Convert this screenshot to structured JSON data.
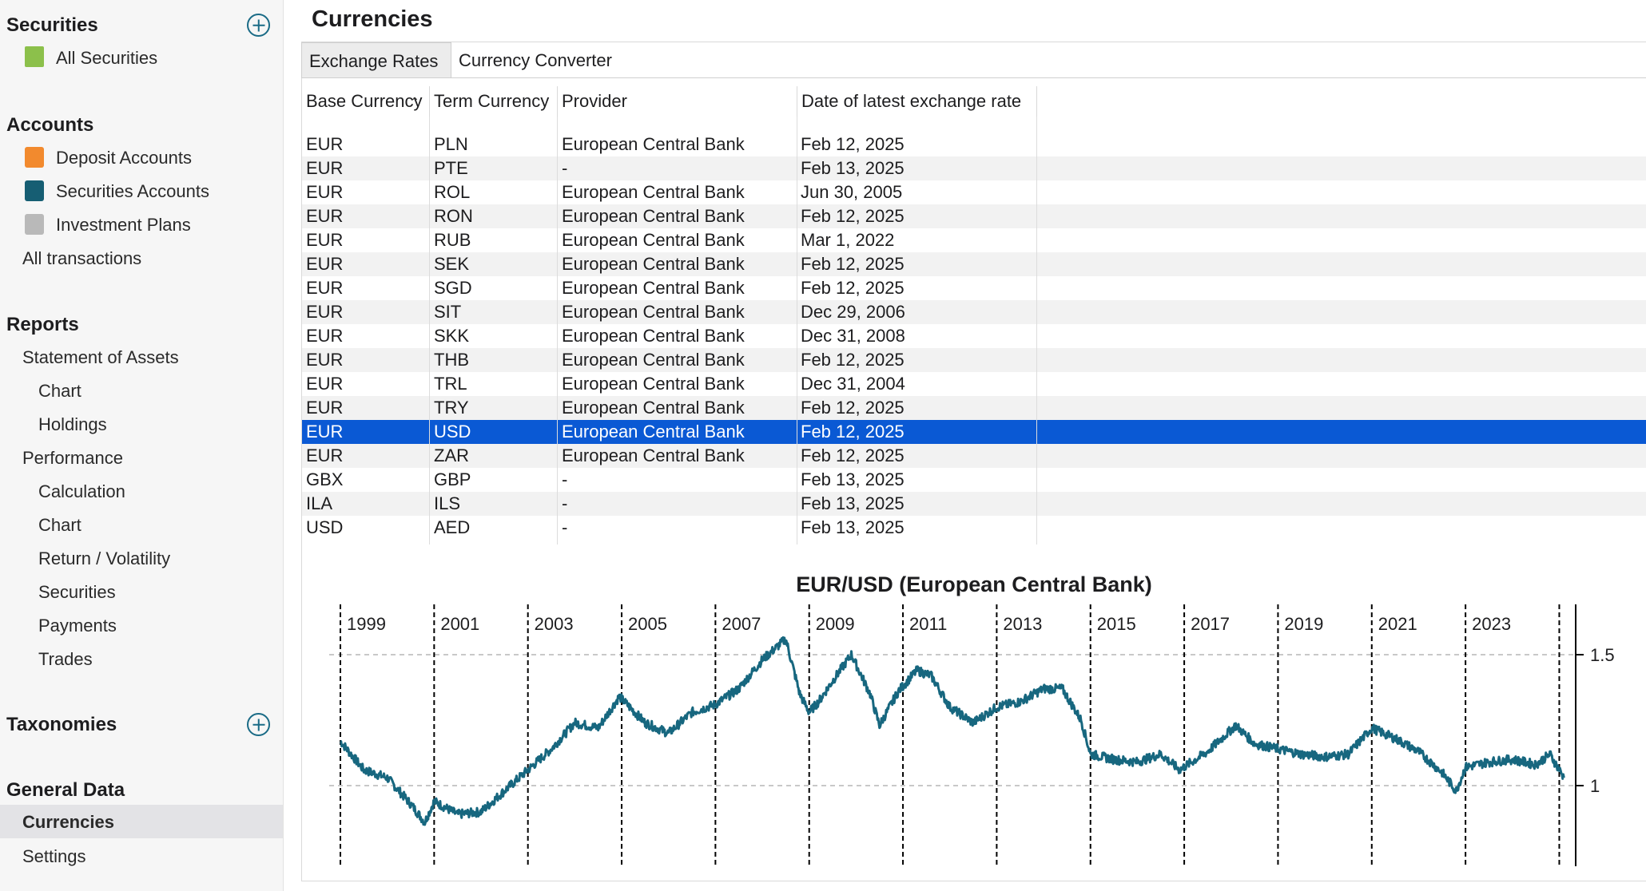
{
  "sidebar": {
    "securities": {
      "heading": "Securities",
      "items": [
        "All Securities"
      ]
    },
    "accounts": {
      "heading": "Accounts",
      "items": [
        "Deposit Accounts",
        "Securities Accounts",
        "Investment Plans",
        "All transactions"
      ]
    },
    "reports": {
      "heading": "Reports",
      "items": [
        "Statement of Assets",
        "Chart",
        "Holdings",
        "Performance",
        "Calculation",
        "Chart",
        "Return / Volatility",
        "Securities",
        "Payments",
        "Trades"
      ]
    },
    "taxonomies": {
      "heading": "Taxonomies"
    },
    "general": {
      "heading": "General Data",
      "items": [
        "Currencies",
        "Settings"
      ]
    }
  },
  "page": {
    "title": "Currencies"
  },
  "tabs": [
    "Exchange Rates",
    "Currency Converter"
  ],
  "table": {
    "columns": [
      "Base Currency",
      "Term Currency",
      "Provider",
      "Date of latest exchange rate"
    ],
    "rows": [
      {
        "base": "EUR",
        "term": "PLN",
        "provider": "European Central Bank",
        "date": "Feb 12, 2025"
      },
      {
        "base": "EUR",
        "term": "PTE",
        "provider": "-",
        "date": "Feb 13, 2025"
      },
      {
        "base": "EUR",
        "term": "ROL",
        "provider": "European Central Bank",
        "date": "Jun 30, 2005"
      },
      {
        "base": "EUR",
        "term": "RON",
        "provider": "European Central Bank",
        "date": "Feb 12, 2025"
      },
      {
        "base": "EUR",
        "term": "RUB",
        "provider": "European Central Bank",
        "date": "Mar 1, 2022"
      },
      {
        "base": "EUR",
        "term": "SEK",
        "provider": "European Central Bank",
        "date": "Feb 12, 2025"
      },
      {
        "base": "EUR",
        "term": "SGD",
        "provider": "European Central Bank",
        "date": "Feb 12, 2025"
      },
      {
        "base": "EUR",
        "term": "SIT",
        "provider": "European Central Bank",
        "date": "Dec 29, 2006"
      },
      {
        "base": "EUR",
        "term": "SKK",
        "provider": "European Central Bank",
        "date": "Dec 31, 2008"
      },
      {
        "base": "EUR",
        "term": "THB",
        "provider": "European Central Bank",
        "date": "Feb 12, 2025"
      },
      {
        "base": "EUR",
        "term": "TRL",
        "provider": "European Central Bank",
        "date": "Dec 31, 2004"
      },
      {
        "base": "EUR",
        "term": "TRY",
        "provider": "European Central Bank",
        "date": "Feb 12, 2025"
      },
      {
        "base": "EUR",
        "term": "USD",
        "provider": "European Central Bank",
        "date": "Feb 12, 2025",
        "selected": true
      },
      {
        "base": "EUR",
        "term": "ZAR",
        "provider": "European Central Bank",
        "date": "Feb 12, 2025"
      },
      {
        "base": "GBX",
        "term": "GBP",
        "provider": "-",
        "date": "Feb 13, 2025"
      },
      {
        "base": "ILA",
        "term": "ILS",
        "provider": "-",
        "date": "Feb 13, 2025"
      },
      {
        "base": "USD",
        "term": "AED",
        "provider": "-",
        "date": "Feb 13, 2025"
      }
    ]
  },
  "colors": {
    "accent": "#1a6b86",
    "selection": "#0a59d4",
    "line": "#17677f"
  },
  "chart_data": {
    "type": "line",
    "title": "EUR/USD (European Central Bank)",
    "x_ticks": [
      "1999",
      "2001",
      "2003",
      "2005",
      "2007",
      "2009",
      "2011",
      "2013",
      "2015",
      "2017",
      "2019",
      "2021",
      "2023"
    ],
    "y_ticks": [
      "1",
      "1.5"
    ],
    "ylim": [
      0.8,
      1.62
    ],
    "grid": true,
    "series": [
      {
        "x": [
          1999.0,
          1999.5,
          2000.0,
          2000.5,
          2000.8,
          2001.0,
          2001.5,
          2002.0,
          2002.5,
          2003.0,
          2003.5,
          2004.0,
          2004.5,
          2004.95,
          2005.5,
          2006.0,
          2006.5,
          2007.0,
          2007.5,
          2008.0,
          2008.5,
          2008.8,
          2009.0,
          2009.2,
          2009.5,
          2009.9,
          2010.3,
          2010.5,
          2010.9,
          2011.3,
          2011.6,
          2012.0,
          2012.5,
          2013.0,
          2013.5,
          2014.0,
          2014.4,
          2014.8,
          2015.0,
          2015.5,
          2016.0,
          2016.5,
          2016.9,
          2017.5,
          2018.1,
          2018.5,
          2019.0,
          2019.5,
          2020.0,
          2020.5,
          2021.0,
          2021.5,
          2022.0,
          2022.5,
          2022.8,
          2023.0,
          2023.5,
          2024.0,
          2024.5,
          2024.8,
          2025.1
        ],
        "values": [
          1.17,
          1.06,
          1.03,
          0.93,
          0.86,
          0.94,
          0.89,
          0.9,
          0.98,
          1.06,
          1.14,
          1.24,
          1.22,
          1.34,
          1.24,
          1.2,
          1.28,
          1.31,
          1.37,
          1.48,
          1.56,
          1.35,
          1.28,
          1.32,
          1.4,
          1.5,
          1.35,
          1.23,
          1.36,
          1.44,
          1.42,
          1.3,
          1.24,
          1.3,
          1.32,
          1.37,
          1.37,
          1.25,
          1.12,
          1.1,
          1.09,
          1.12,
          1.06,
          1.13,
          1.23,
          1.16,
          1.14,
          1.12,
          1.11,
          1.12,
          1.22,
          1.18,
          1.13,
          1.05,
          0.98,
          1.07,
          1.09,
          1.1,
          1.08,
          1.12,
          1.03
        ]
      }
    ]
  }
}
